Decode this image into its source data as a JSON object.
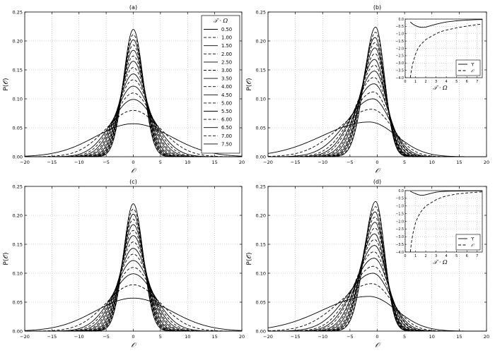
{
  "chart_data": [
    {
      "type": "line",
      "title": "(a)",
      "xlabel": "𝒪",
      "ylabel": "P(𝒪)",
      "xlim": [
        -20,
        20
      ],
      "ylim": [
        0,
        0.25
      ],
      "xticks": [
        "−20",
        "−15",
        "−10",
        "−5",
        "0",
        "5",
        "10",
        "15",
        "20"
      ],
      "yticks": [
        "0.00",
        "0.05",
        "0.10",
        "0.15",
        "0.20",
        "0.25"
      ],
      "grid": true,
      "legend": {
        "position": "top-right",
        "title": "𝒯 · Ω",
        "entries": [
          "0.50",
          "1.00",
          "1.50",
          "2.00",
          "2.50",
          "3.00",
          "3.50",
          "4.00",
          "4.50",
          "5.00",
          "5.50",
          "6.00",
          "6.50",
          "7.00",
          "7.50"
        ]
      },
      "series": [
        {
          "name": "0.50",
          "shape": "gaussian",
          "peak_x": 0.0,
          "peak_y": 0.057,
          "sigma_left": 7.0,
          "sigma_right": 7.0,
          "dash": "solid"
        },
        {
          "name": "1.00",
          "shape": "gaussian",
          "peak_x": 0.0,
          "peak_y": 0.08,
          "sigma_left": 5.0,
          "sigma_right": 5.0,
          "dash": "dashed"
        },
        {
          "name": "1.50",
          "shape": "gaussian",
          "peak_x": 0.0,
          "peak_y": 0.099,
          "sigma_left": 4.0,
          "sigma_right": 4.0,
          "dash": "solid"
        },
        {
          "name": "2.00",
          "shape": "gaussian",
          "peak_x": 0.0,
          "peak_y": 0.11,
          "sigma_left": 3.6,
          "sigma_right": 3.6,
          "dash": "dashed"
        },
        {
          "name": "2.50",
          "shape": "gaussian",
          "peak_x": 0.0,
          "peak_y": 0.122,
          "sigma_left": 3.25,
          "sigma_right": 3.25,
          "dash": "solid"
        },
        {
          "name": "3.00",
          "shape": "gaussian",
          "peak_x": 0.0,
          "peak_y": 0.133,
          "sigma_left": 3.0,
          "sigma_right": 3.0,
          "dash": "dashed"
        },
        {
          "name": "3.50",
          "shape": "gaussian",
          "peak_x": 0.0,
          "peak_y": 0.143,
          "sigma_left": 2.8,
          "sigma_right": 2.8,
          "dash": "solid"
        },
        {
          "name": "4.00",
          "shape": "gaussian",
          "peak_x": 0.0,
          "peak_y": 0.154,
          "sigma_left": 2.6,
          "sigma_right": 2.6,
          "dash": "dashed"
        },
        {
          "name": "4.50",
          "shape": "gaussian",
          "peak_x": 0.0,
          "peak_y": 0.165,
          "sigma_left": 2.42,
          "sigma_right": 2.42,
          "dash": "solid"
        },
        {
          "name": "5.00",
          "shape": "gaussian",
          "peak_x": 0.0,
          "peak_y": 0.174,
          "sigma_left": 2.3,
          "sigma_right": 2.3,
          "dash": "dashed"
        },
        {
          "name": "5.50",
          "shape": "gaussian",
          "peak_x": 0.0,
          "peak_y": 0.184,
          "sigma_left": 2.17,
          "sigma_right": 2.17,
          "dash": "solid"
        },
        {
          "name": "6.00",
          "shape": "gaussian",
          "peak_x": 0.0,
          "peak_y": 0.193,
          "sigma_left": 2.07,
          "sigma_right": 2.07,
          "dash": "dashed"
        },
        {
          "name": "6.50",
          "shape": "gaussian",
          "peak_x": 0.0,
          "peak_y": 0.202,
          "sigma_left": 1.98,
          "sigma_right": 1.98,
          "dash": "solid"
        },
        {
          "name": "7.00",
          "shape": "gaussian",
          "peak_x": 0.0,
          "peak_y": 0.211,
          "sigma_left": 1.89,
          "sigma_right": 1.89,
          "dash": "dashed"
        },
        {
          "name": "7.50",
          "shape": "gaussian",
          "peak_x": 0.0,
          "peak_y": 0.22,
          "sigma_left": 1.81,
          "sigma_right": 1.81,
          "dash": "solid"
        }
      ]
    },
    {
      "type": "line",
      "title": "(b)",
      "xlabel": "𝒪",
      "ylabel": "P(𝒪)",
      "xlim": [
        -20,
        20
      ],
      "ylim": [
        0,
        0.25
      ],
      "xticks": [
        "−20",
        "−15",
        "−10",
        "−5",
        "0",
        "5",
        "10",
        "15",
        "20"
      ],
      "yticks": [
        "0.00",
        "0.05",
        "0.10",
        "0.15",
        "0.20",
        "0.25"
      ],
      "grid": true,
      "series": [
        {
          "shape": "gaussian",
          "peak_x": -1.5,
          "peak_y": 0.06,
          "sigma_left": 8.5,
          "sigma_right": 5.0,
          "dash": "solid"
        },
        {
          "shape": "gaussian",
          "peak_x": -1.0,
          "peak_y": 0.082,
          "sigma_left": 6.0,
          "sigma_right": 3.8,
          "dash": "dashed"
        },
        {
          "shape": "gaussian",
          "peak_x": -0.8,
          "peak_y": 0.1,
          "sigma_left": 4.8,
          "sigma_right": 3.2,
          "dash": "solid"
        },
        {
          "shape": "gaussian",
          "peak_x": -0.7,
          "peak_y": 0.112,
          "sigma_left": 4.2,
          "sigma_right": 2.9,
          "dash": "dashed"
        },
        {
          "shape": "gaussian",
          "peak_x": -0.6,
          "peak_y": 0.126,
          "sigma_left": 3.8,
          "sigma_right": 2.7,
          "dash": "solid"
        },
        {
          "shape": "gaussian",
          "peak_x": -0.6,
          "peak_y": 0.137,
          "sigma_left": 3.5,
          "sigma_right": 2.5,
          "dash": "dashed"
        },
        {
          "shape": "gaussian",
          "peak_x": -0.5,
          "peak_y": 0.148,
          "sigma_left": 3.2,
          "sigma_right": 2.35,
          "dash": "solid"
        },
        {
          "shape": "gaussian",
          "peak_x": -0.5,
          "peak_y": 0.158,
          "sigma_left": 3.0,
          "sigma_right": 2.2,
          "dash": "dashed"
        },
        {
          "shape": "gaussian",
          "peak_x": -0.5,
          "peak_y": 0.168,
          "sigma_left": 2.8,
          "sigma_right": 2.1,
          "dash": "solid"
        },
        {
          "shape": "gaussian",
          "peak_x": -0.4,
          "peak_y": 0.178,
          "sigma_left": 2.65,
          "sigma_right": 2.0,
          "dash": "dashed"
        },
        {
          "shape": "gaussian",
          "peak_x": -0.4,
          "peak_y": 0.188,
          "sigma_left": 2.5,
          "sigma_right": 1.92,
          "dash": "solid"
        },
        {
          "shape": "gaussian",
          "peak_x": -0.4,
          "peak_y": 0.197,
          "sigma_left": 2.38,
          "sigma_right": 1.85,
          "dash": "dashed"
        },
        {
          "shape": "gaussian",
          "peak_x": -0.4,
          "peak_y": 0.206,
          "sigma_left": 2.27,
          "sigma_right": 1.78,
          "dash": "solid"
        },
        {
          "shape": "gaussian",
          "peak_x": -0.3,
          "peak_y": 0.215,
          "sigma_left": 2.17,
          "sigma_right": 1.72,
          "dash": "dashed"
        },
        {
          "shape": "gaussian",
          "peak_x": -0.3,
          "peak_y": 0.224,
          "sigma_left": 2.08,
          "sigma_right": 1.66,
          "dash": "solid"
        }
      ],
      "inset": {
        "xlabel": "𝒯 · Ω",
        "xlim": [
          0,
          7.5
        ],
        "ylim": [
          -4.0,
          0.0
        ],
        "xticks": [
          "0",
          "1",
          "2",
          "3",
          "4",
          "5",
          "6",
          "7"
        ],
        "yticks": [
          "0.0",
          "−0.5",
          "−1.0",
          "−1.5",
          "−2.0",
          "−2.5",
          "−3.0",
          "−3.5",
          "−4.0"
        ],
        "legend": [
          "ϒ",
          "𝒪"
        ],
        "series": [
          {
            "name": "ϒ",
            "dash": "solid",
            "x": [
              0.5,
              0.75,
              1.0,
              1.25,
              1.5,
              1.75,
              2.0,
              2.5,
              3.0,
              3.5,
              4.0,
              5.0,
              6.0,
              7.0,
              7.5
            ],
            "y": [
              -0.2,
              -0.35,
              -0.45,
              -0.52,
              -0.56,
              -0.57,
              -0.55,
              -0.45,
              -0.35,
              -0.27,
              -0.2,
              -0.12,
              -0.07,
              -0.04,
              -0.03
            ]
          },
          {
            "name": "𝒪",
            "dash": "dashed",
            "x": [
              0.5,
              0.6,
              0.75,
              1.0,
              1.25,
              1.5,
              2.0,
              2.5,
              3.0,
              3.5,
              4.0,
              5.0,
              6.0,
              7.0,
              7.5
            ],
            "y": [
              -4.0,
              -3.5,
              -3.0,
              -2.4,
              -2.0,
              -1.75,
              -1.4,
              -1.2,
              -1.0,
              -0.85,
              -0.75,
              -0.6,
              -0.48,
              -0.38,
              -0.35
            ]
          }
        ]
      }
    },
    {
      "type": "line",
      "title": "(c)",
      "xlabel": "𝒪",
      "ylabel": "P(𝒪)",
      "xlim": [
        -20,
        20
      ],
      "ylim": [
        0,
        0.25
      ],
      "xticks": [
        "−20",
        "−15",
        "−10",
        "−5",
        "0",
        "5",
        "10",
        "15",
        "20"
      ],
      "yticks": [
        "0.00",
        "0.05",
        "0.10",
        "0.15",
        "0.20",
        "0.25"
      ],
      "grid": true,
      "series": [
        {
          "shape": "gaussian",
          "peak_x": 0.0,
          "peak_y": 0.057,
          "sigma_left": 7.0,
          "sigma_right": 7.0,
          "dash": "solid"
        },
        {
          "shape": "gaussian",
          "peak_x": 0.0,
          "peak_y": 0.08,
          "sigma_left": 5.0,
          "sigma_right": 5.0,
          "dash": "dashed"
        },
        {
          "shape": "gaussian",
          "peak_x": 0.0,
          "peak_y": 0.099,
          "sigma_left": 4.0,
          "sigma_right": 4.0,
          "dash": "solid"
        },
        {
          "shape": "gaussian",
          "peak_x": 0.0,
          "peak_y": 0.11,
          "sigma_left": 3.6,
          "sigma_right": 3.6,
          "dash": "dashed"
        },
        {
          "shape": "gaussian",
          "peak_x": 0.0,
          "peak_y": 0.122,
          "sigma_left": 3.25,
          "sigma_right": 3.25,
          "dash": "solid"
        },
        {
          "shape": "gaussian",
          "peak_x": 0.0,
          "peak_y": 0.133,
          "sigma_left": 3.0,
          "sigma_right": 3.0,
          "dash": "dashed"
        },
        {
          "shape": "gaussian",
          "peak_x": 0.0,
          "peak_y": 0.143,
          "sigma_left": 2.8,
          "sigma_right": 2.8,
          "dash": "solid"
        },
        {
          "shape": "gaussian",
          "peak_x": 0.0,
          "peak_y": 0.154,
          "sigma_left": 2.6,
          "sigma_right": 2.6,
          "dash": "dashed"
        },
        {
          "shape": "gaussian",
          "peak_x": 0.0,
          "peak_y": 0.165,
          "sigma_left": 2.42,
          "sigma_right": 2.42,
          "dash": "solid"
        },
        {
          "shape": "gaussian",
          "peak_x": 0.0,
          "peak_y": 0.174,
          "sigma_left": 2.3,
          "sigma_right": 2.3,
          "dash": "dashed"
        },
        {
          "shape": "gaussian",
          "peak_x": 0.0,
          "peak_y": 0.184,
          "sigma_left": 2.17,
          "sigma_right": 2.17,
          "dash": "solid"
        },
        {
          "shape": "gaussian",
          "peak_x": 0.0,
          "peak_y": 0.193,
          "sigma_left": 2.07,
          "sigma_right": 2.07,
          "dash": "dashed"
        },
        {
          "shape": "gaussian",
          "peak_x": 0.0,
          "peak_y": 0.202,
          "sigma_left": 1.98,
          "sigma_right": 1.98,
          "dash": "solid"
        },
        {
          "shape": "gaussian",
          "peak_x": 0.0,
          "peak_y": 0.211,
          "sigma_left": 1.89,
          "sigma_right": 1.89,
          "dash": "dashed"
        },
        {
          "shape": "gaussian",
          "peak_x": 0.0,
          "peak_y": 0.22,
          "sigma_left": 1.81,
          "sigma_right": 1.81,
          "dash": "solid"
        }
      ]
    },
    {
      "type": "line",
      "title": "(d)",
      "xlabel": "𝒪",
      "ylabel": "P(𝒪)",
      "xlim": [
        -20,
        20
      ],
      "ylim": [
        0,
        0.25
      ],
      "xticks": [
        "−20",
        "−15",
        "−10",
        "−5",
        "0",
        "5",
        "10",
        "15",
        "20"
      ],
      "yticks": [
        "0.00",
        "0.05",
        "0.10",
        "0.15",
        "0.20",
        "0.25"
      ],
      "grid": true,
      "series": [
        {
          "shape": "gaussian",
          "peak_x": -1.5,
          "peak_y": 0.06,
          "sigma_left": 8.5,
          "sigma_right": 5.0,
          "dash": "solid"
        },
        {
          "shape": "gaussian",
          "peak_x": -1.0,
          "peak_y": 0.082,
          "sigma_left": 6.0,
          "sigma_right": 3.8,
          "dash": "dashed"
        },
        {
          "shape": "gaussian",
          "peak_x": -0.8,
          "peak_y": 0.1,
          "sigma_left": 4.8,
          "sigma_right": 3.2,
          "dash": "solid"
        },
        {
          "shape": "gaussian",
          "peak_x": -0.7,
          "peak_y": 0.112,
          "sigma_left": 4.2,
          "sigma_right": 2.9,
          "dash": "dashed"
        },
        {
          "shape": "gaussian",
          "peak_x": -0.6,
          "peak_y": 0.126,
          "sigma_left": 3.8,
          "sigma_right": 2.7,
          "dash": "solid"
        },
        {
          "shape": "gaussian",
          "peak_x": -0.6,
          "peak_y": 0.137,
          "sigma_left": 3.5,
          "sigma_right": 2.5,
          "dash": "dashed"
        },
        {
          "shape": "gaussian",
          "peak_x": -0.5,
          "peak_y": 0.148,
          "sigma_left": 3.2,
          "sigma_right": 2.35,
          "dash": "solid"
        },
        {
          "shape": "gaussian",
          "peak_x": -0.5,
          "peak_y": 0.158,
          "sigma_left": 3.0,
          "sigma_right": 2.2,
          "dash": "dashed"
        },
        {
          "shape": "gaussian",
          "peak_x": -0.5,
          "peak_y": 0.168,
          "sigma_left": 2.8,
          "sigma_right": 2.1,
          "dash": "solid"
        },
        {
          "shape": "gaussian",
          "peak_x": -0.4,
          "peak_y": 0.178,
          "sigma_left": 2.65,
          "sigma_right": 2.0,
          "dash": "dashed"
        },
        {
          "shape": "gaussian",
          "peak_x": -0.4,
          "peak_y": 0.188,
          "sigma_left": 2.5,
          "sigma_right": 1.92,
          "dash": "solid"
        },
        {
          "shape": "gaussian",
          "peak_x": -0.4,
          "peak_y": 0.197,
          "sigma_left": 2.38,
          "sigma_right": 1.85,
          "dash": "dashed"
        },
        {
          "shape": "gaussian",
          "peak_x": -0.4,
          "peak_y": 0.206,
          "sigma_left": 2.27,
          "sigma_right": 1.78,
          "dash": "solid"
        },
        {
          "shape": "gaussian",
          "peak_x": -0.3,
          "peak_y": 0.215,
          "sigma_left": 2.17,
          "sigma_right": 1.72,
          "dash": "dashed"
        },
        {
          "shape": "gaussian",
          "peak_x": -0.3,
          "peak_y": 0.224,
          "sigma_left": 2.08,
          "sigma_right": 1.66,
          "dash": "solid"
        }
      ],
      "inset": {
        "xlabel": "𝒯 · Ω",
        "xlim": [
          0,
          7.5
        ],
        "ylim": [
          -4.0,
          0.0
        ],
        "xticks": [
          "0",
          "1",
          "2",
          "3",
          "4",
          "5",
          "6",
          "7"
        ],
        "yticks": [
          "0.0",
          "−0.5",
          "−1.0",
          "−1.5",
          "−2.0",
          "−2.5",
          "−3.0",
          "−3.5",
          "−4.0"
        ],
        "legend": [
          "ϒ",
          "𝒪"
        ],
        "series": [
          {
            "name": "ϒ",
            "dash": "solid",
            "x": [
              0.5,
              0.75,
              1.0,
              1.25,
              1.5,
              1.75,
              2.0,
              2.5,
              3.0,
              3.5,
              4.0,
              5.0,
              6.0,
              7.0,
              7.5
            ],
            "y": [
              -0.05,
              -0.12,
              -0.2,
              -0.26,
              -0.3,
              -0.3,
              -0.27,
              -0.18,
              -0.1,
              -0.06,
              -0.04,
              -0.03,
              -0.02,
              -0.02,
              -0.02
            ]
          },
          {
            "name": "𝒪",
            "dash": "dashed",
            "x": [
              0.5,
              0.6,
              0.75,
              1.0,
              1.25,
              1.5,
              2.0,
              2.5,
              3.0,
              3.5,
              4.0,
              5.0,
              6.0,
              7.0,
              7.5
            ],
            "y": [
              -4.0,
              -3.4,
              -2.8,
              -2.1,
              -1.7,
              -1.4,
              -1.0,
              -0.8,
              -0.6,
              -0.45,
              -0.35,
              -0.22,
              -0.15,
              -0.1,
              -0.08
            ]
          }
        ]
      }
    }
  ]
}
